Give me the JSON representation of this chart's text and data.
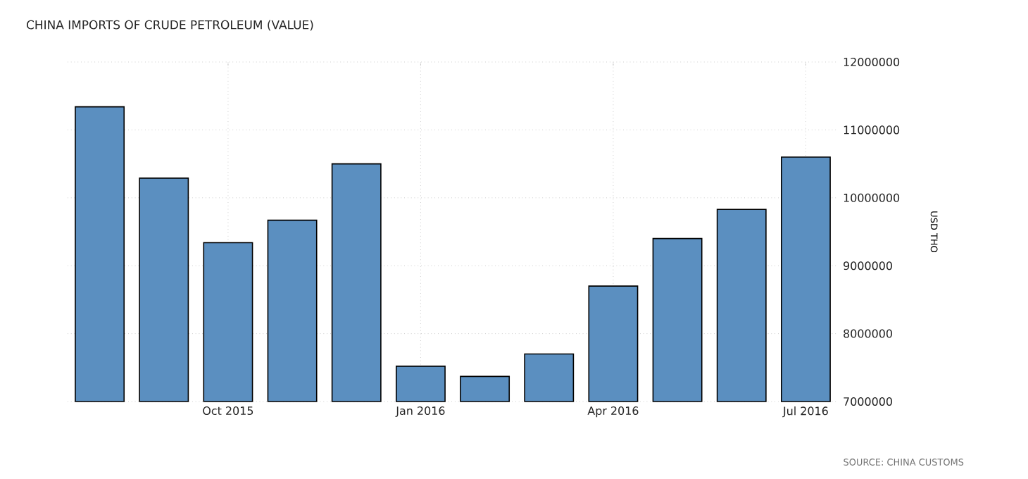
{
  "chart_data": {
    "type": "bar",
    "title": "CHINA IMPORTS OF CRUDE PETROLEUM (VALUE)",
    "ylabel": "USD THO",
    "categories": [
      null,
      null,
      "Oct 2015",
      null,
      null,
      "Jan 2016",
      null,
      null,
      "Apr 2016",
      null,
      null,
      "Jul 2016"
    ],
    "values": [
      11340000,
      10290000,
      9340000,
      9670000,
      10500000,
      7520000,
      7370000,
      7700000,
      8700000,
      9400000,
      9830000,
      10600000
    ],
    "color": "#5b8fc0",
    "ylim": [
      7000000,
      12000000
    ],
    "yticks": [
      7000000,
      8000000,
      9000000,
      10000000,
      11000000,
      12000000
    ],
    "grid": true,
    "annotations": [
      "SOURCE: CHINA CUSTOMS"
    ]
  }
}
